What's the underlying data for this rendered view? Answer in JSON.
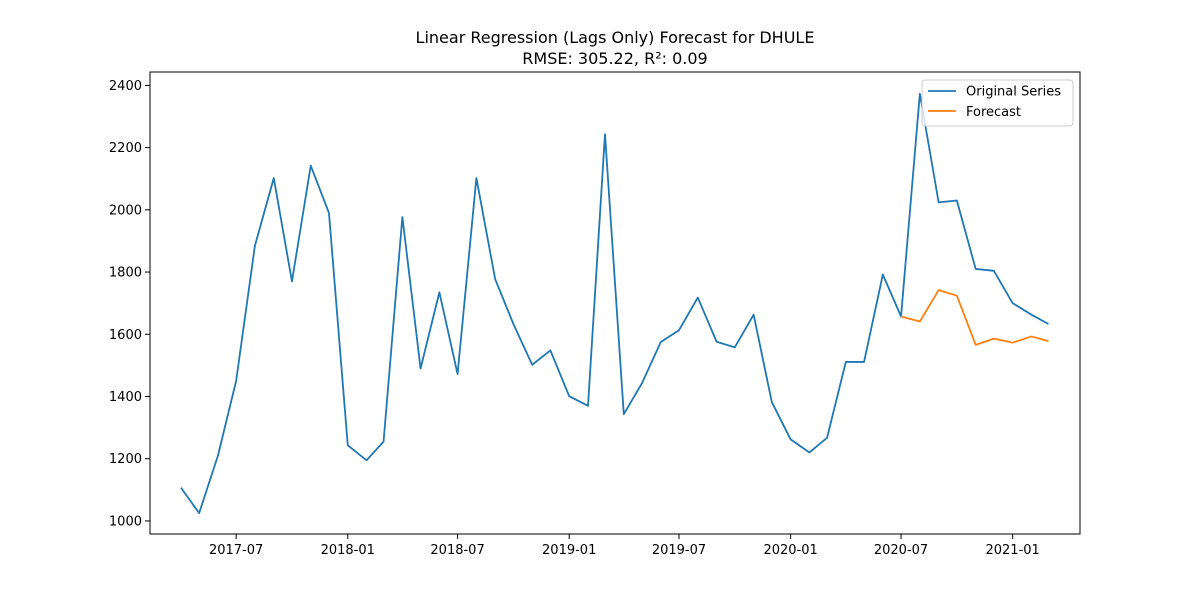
{
  "chart_data": {
    "type": "line",
    "title": "Linear Regression (Lags Only) Forecast for DHULE",
    "subtitle": "RMSE: 305.22, R²: 0.09",
    "xlabel": "",
    "ylabel": "",
    "xlim": [
      "2017-02-09",
      "2021-04-22"
    ],
    "ylim": [
      958,
      2443
    ],
    "x_ticks": [
      "2017-07",
      "2018-01",
      "2018-07",
      "2019-01",
      "2019-07",
      "2020-01",
      "2020-07",
      "2021-01"
    ],
    "y_ticks": [
      1000,
      1200,
      1400,
      1600,
      1800,
      2000,
      2200,
      2400
    ],
    "grid": false,
    "legend_position": "top-right",
    "series": [
      {
        "name": "Original Series",
        "color": "#1f77b4",
        "x": [
          "2017-04",
          "2017-05",
          "2017-06",
          "2017-07",
          "2017-08",
          "2017-09",
          "2017-10",
          "2017-11",
          "2017-12",
          "2018-01",
          "2018-02",
          "2018-03",
          "2018-04",
          "2018-05",
          "2018-06",
          "2018-07",
          "2018-08",
          "2018-09",
          "2018-10",
          "2018-11",
          "2018-12",
          "2019-01",
          "2019-02",
          "2019-03",
          "2019-04",
          "2019-05",
          "2019-06",
          "2019-07",
          "2019-08",
          "2019-09",
          "2019-10",
          "2019-11",
          "2019-12",
          "2020-01",
          "2020-02",
          "2020-03",
          "2020-04",
          "2020-05",
          "2020-06",
          "2020-07",
          "2020-08",
          "2020-09",
          "2020-10",
          "2020-11",
          "2020-12",
          "2021-01",
          "2021-02",
          "2021-03"
        ],
        "values": [
          1107,
          1025,
          1210,
          1450,
          1885,
          2102,
          1770,
          2142,
          1990,
          1243,
          1195,
          1255,
          1977,
          1490,
          1735,
          1472,
          2102,
          1777,
          1633,
          1502,
          1548,
          1401,
          1370,
          2243,
          1343,
          1443,
          1575,
          1613,
          1718,
          1576,
          1558,
          1663,
          1382,
          1262,
          1220,
          1267,
          1511,
          1511,
          1792,
          1657,
          2373,
          2024,
          2030,
          1810,
          1804,
          1700,
          1663,
          1633
        ]
      },
      {
        "name": "Forecast",
        "color": "#ff7f0e",
        "x": [
          "2020-07",
          "2020-08",
          "2020-09",
          "2020-10",
          "2020-11",
          "2020-12",
          "2021-01",
          "2021-02",
          "2021-03"
        ],
        "values": [
          1657,
          1641,
          1742,
          1724,
          1566,
          1586,
          1573,
          1593,
          1578
        ]
      }
    ]
  }
}
